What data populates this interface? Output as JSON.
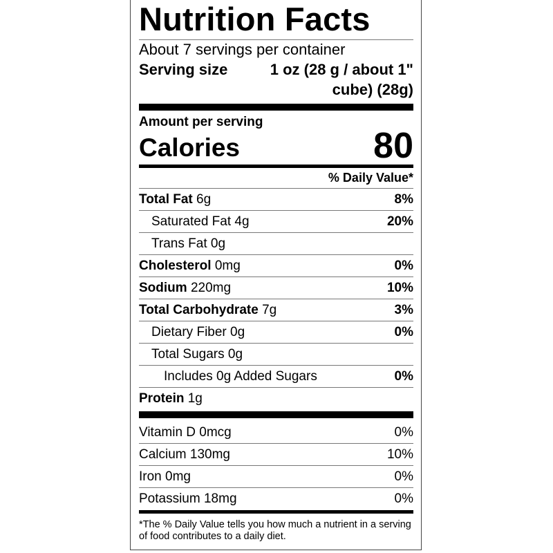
{
  "title": "Nutrition Facts",
  "servings_per_container": "About 7 servings per container",
  "serving_size": {
    "label": "Serving size",
    "value": "1 oz (28 g / about 1\" cube) (28g)"
  },
  "amount_per_serving": "Amount per serving",
  "calories": {
    "label": "Calories",
    "value": "80"
  },
  "daily_value_header": "% Daily Value*",
  "nutrients": [
    {
      "name": "Total Fat",
      "amount": "6g",
      "dv": "8%"
    },
    {
      "name": "Saturated Fat",
      "amount": "4g",
      "dv": "20%"
    },
    {
      "name": "Trans Fat",
      "amount": "0g",
      "dv": ""
    },
    {
      "name": "Cholesterol",
      "amount": "0mg",
      "dv": "0%"
    },
    {
      "name": "Sodium",
      "amount": "220mg",
      "dv": "10%"
    },
    {
      "name": "Total Carbohydrate",
      "amount": "7g",
      "dv": "3%"
    },
    {
      "name": "Dietary Fiber",
      "amount": "0g",
      "dv": "0%"
    },
    {
      "name": "Total Sugars",
      "amount": "0g",
      "dv": ""
    },
    {
      "name": "Includes 0g Added Sugars",
      "amount": "",
      "dv": "0%"
    },
    {
      "name": "Protein",
      "amount": "1g",
      "dv": ""
    }
  ],
  "vitamins": [
    {
      "text": "Vitamin D 0mcg",
      "dv": "0%"
    },
    {
      "text": "Calcium 130mg",
      "dv": "10%"
    },
    {
      "text": "Iron 0mg",
      "dv": "0%"
    },
    {
      "text": "Potassium 18mg",
      "dv": "0%"
    }
  ],
  "footnote": "*The % Daily Value tells you how much a nutrient in a serving of food contributes to a daily diet."
}
